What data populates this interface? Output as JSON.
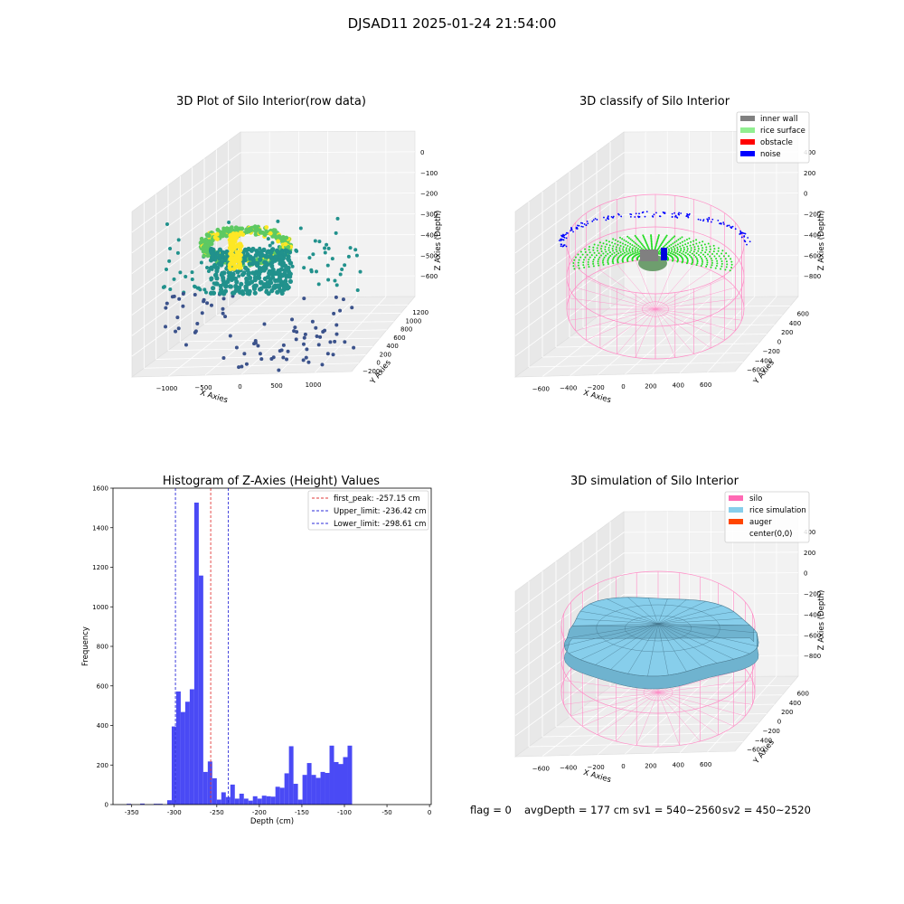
{
  "suptitle": "DJSAD11 2025-01-24 21:54:00",
  "footer": {
    "flag": "flag = 0",
    "avg_depth": "avgDepth = 177 cm",
    "sv1": "sv1 = 540~2560",
    "sv2": "sv2 = 450~2520"
  },
  "colors": {
    "histogram": "#4a4af5",
    "first_peak": "#e23b3b",
    "limits": "#2b2bd8",
    "inner_wall": "#808080",
    "rice_surface": "#90ee90",
    "obstacle": "#ff0000",
    "noise": "#0000ff",
    "silo": "#ff69b4",
    "rice_simulation": "#87ceeb",
    "auger": "#ff4500"
  },
  "chart_data": [
    {
      "type": "scatter",
      "projection": "3d",
      "title": "3D Plot of Silo Interior(row data)",
      "xlabel": "X Axies",
      "ylabel": "Y Axies",
      "zlabel": "Z Axies (Depth)",
      "x_ticks": [
        "−1000",
        "−500",
        "0",
        "500",
        "1000"
      ],
      "y_ticks": [
        "−200",
        "0",
        "200",
        "400",
        "600",
        "800",
        "1000",
        "1200"
      ],
      "z_ticks": [
        "0",
        "−100",
        "−200",
        "−300",
        "−400",
        "−500",
        "−600"
      ],
      "colormap": "viridis"
    },
    {
      "type": "scatter",
      "projection": "3d",
      "title": "3D classify of Silo Interior",
      "xlabel": "X Axies",
      "ylabel": "Y Axies",
      "zlabel": "Z Axies (Depth)",
      "x_ticks": [
        "−600",
        "−400",
        "−200",
        "0",
        "200",
        "400",
        "600"
      ],
      "y_ticks": [
        "−600",
        "−400",
        "−200",
        "0",
        "200",
        "400",
        "600"
      ],
      "z_ticks": [
        "400",
        "200",
        "0",
        "−200",
        "−400",
        "−600",
        "−800"
      ],
      "legend": [
        "inner wall",
        "rice surface",
        "obstacle",
        "noise"
      ],
      "legend_position": "top-right"
    },
    {
      "type": "bar",
      "title": "Histogram of Z-Axies (Height) Values",
      "xlabel": "Depth (cm)",
      "ylabel": "Frequency",
      "xlim": [
        -372,
        2
      ],
      "ylim": [
        0,
        1600
      ],
      "x_ticks": [
        -350,
        -300,
        -250,
        -200,
        -150,
        -100,
        -50,
        0
      ],
      "y_ticks": [
        0,
        200,
        400,
        600,
        800,
        1000,
        1200,
        1400,
        1600
      ],
      "bin_edges_start": -356,
      "bin_width": 5.3,
      "values": [
        4,
        0,
        0,
        5,
        0,
        0,
        4,
        4,
        0,
        22,
        395,
        572,
        468,
        520,
        583,
        1527,
        1158,
        165,
        218,
        133,
        25,
        62,
        38,
        101,
        30,
        55,
        30,
        20,
        42,
        30,
        45,
        42,
        40,
        90,
        85,
        158,
        295,
        105,
        25,
        150,
        210,
        150,
        135,
        165,
        160,
        298,
        215,
        205,
        240,
        298
      ],
      "lines": [
        {
          "name": "first_peak: -257.15 cm",
          "x": -257.15,
          "color": "red",
          "style": "dashed"
        },
        {
          "name": "Upper_limit: -236.42 cm",
          "x": -236.42,
          "color": "blue",
          "style": "dashed"
        },
        {
          "name": "Lower_limit: -298.61 cm",
          "x": -298.61,
          "color": "blue",
          "style": "dashed"
        }
      ],
      "legend_position": "top-right",
      "grid": false
    },
    {
      "type": "surface",
      "projection": "3d",
      "title": "3D simulation of Silo Interior",
      "xlabel": "X Axies",
      "ylabel": "Y Axies",
      "zlabel": "Z Axies (Depth)",
      "x_ticks": [
        "−600",
        "−400",
        "−200",
        "0",
        "200",
        "400",
        "600"
      ],
      "y_ticks": [
        "−600",
        "−400",
        "−200",
        "0",
        "200",
        "400",
        "600"
      ],
      "z_ticks": [
        "400",
        "200",
        "0",
        "−200",
        "−400",
        "−600",
        "−800"
      ],
      "legend": [
        "silo",
        "rice simulation",
        "auger",
        "center(0,0)"
      ],
      "legend_position": "top-right"
    }
  ]
}
